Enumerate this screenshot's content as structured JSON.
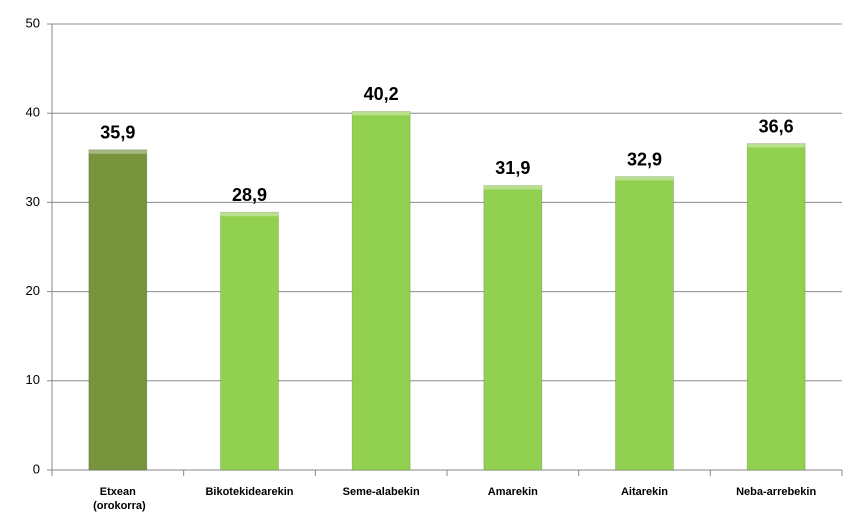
{
  "chart_data": {
    "type": "bar",
    "categories": [
      "Etxean (orokorra)",
      "Bikotekidearekin",
      "Seme-alabekin",
      "Amarekin",
      "Aitarekin",
      "Neba-arrebekin"
    ],
    "values": [
      35.9,
      28.9,
      40.2,
      31.9,
      32.9,
      36.6
    ],
    "value_labels": [
      "35,9",
      "28,9",
      "40,2",
      "31,9",
      "32,9",
      "36,6"
    ],
    "colors": [
      "#77933c",
      "#92d050",
      "#92d050",
      "#92d050",
      "#92d050",
      "#92d050"
    ],
    "ylim": [
      0,
      50
    ],
    "yticks": [
      0,
      10,
      20,
      30,
      40,
      50
    ],
    "grid": true
  }
}
